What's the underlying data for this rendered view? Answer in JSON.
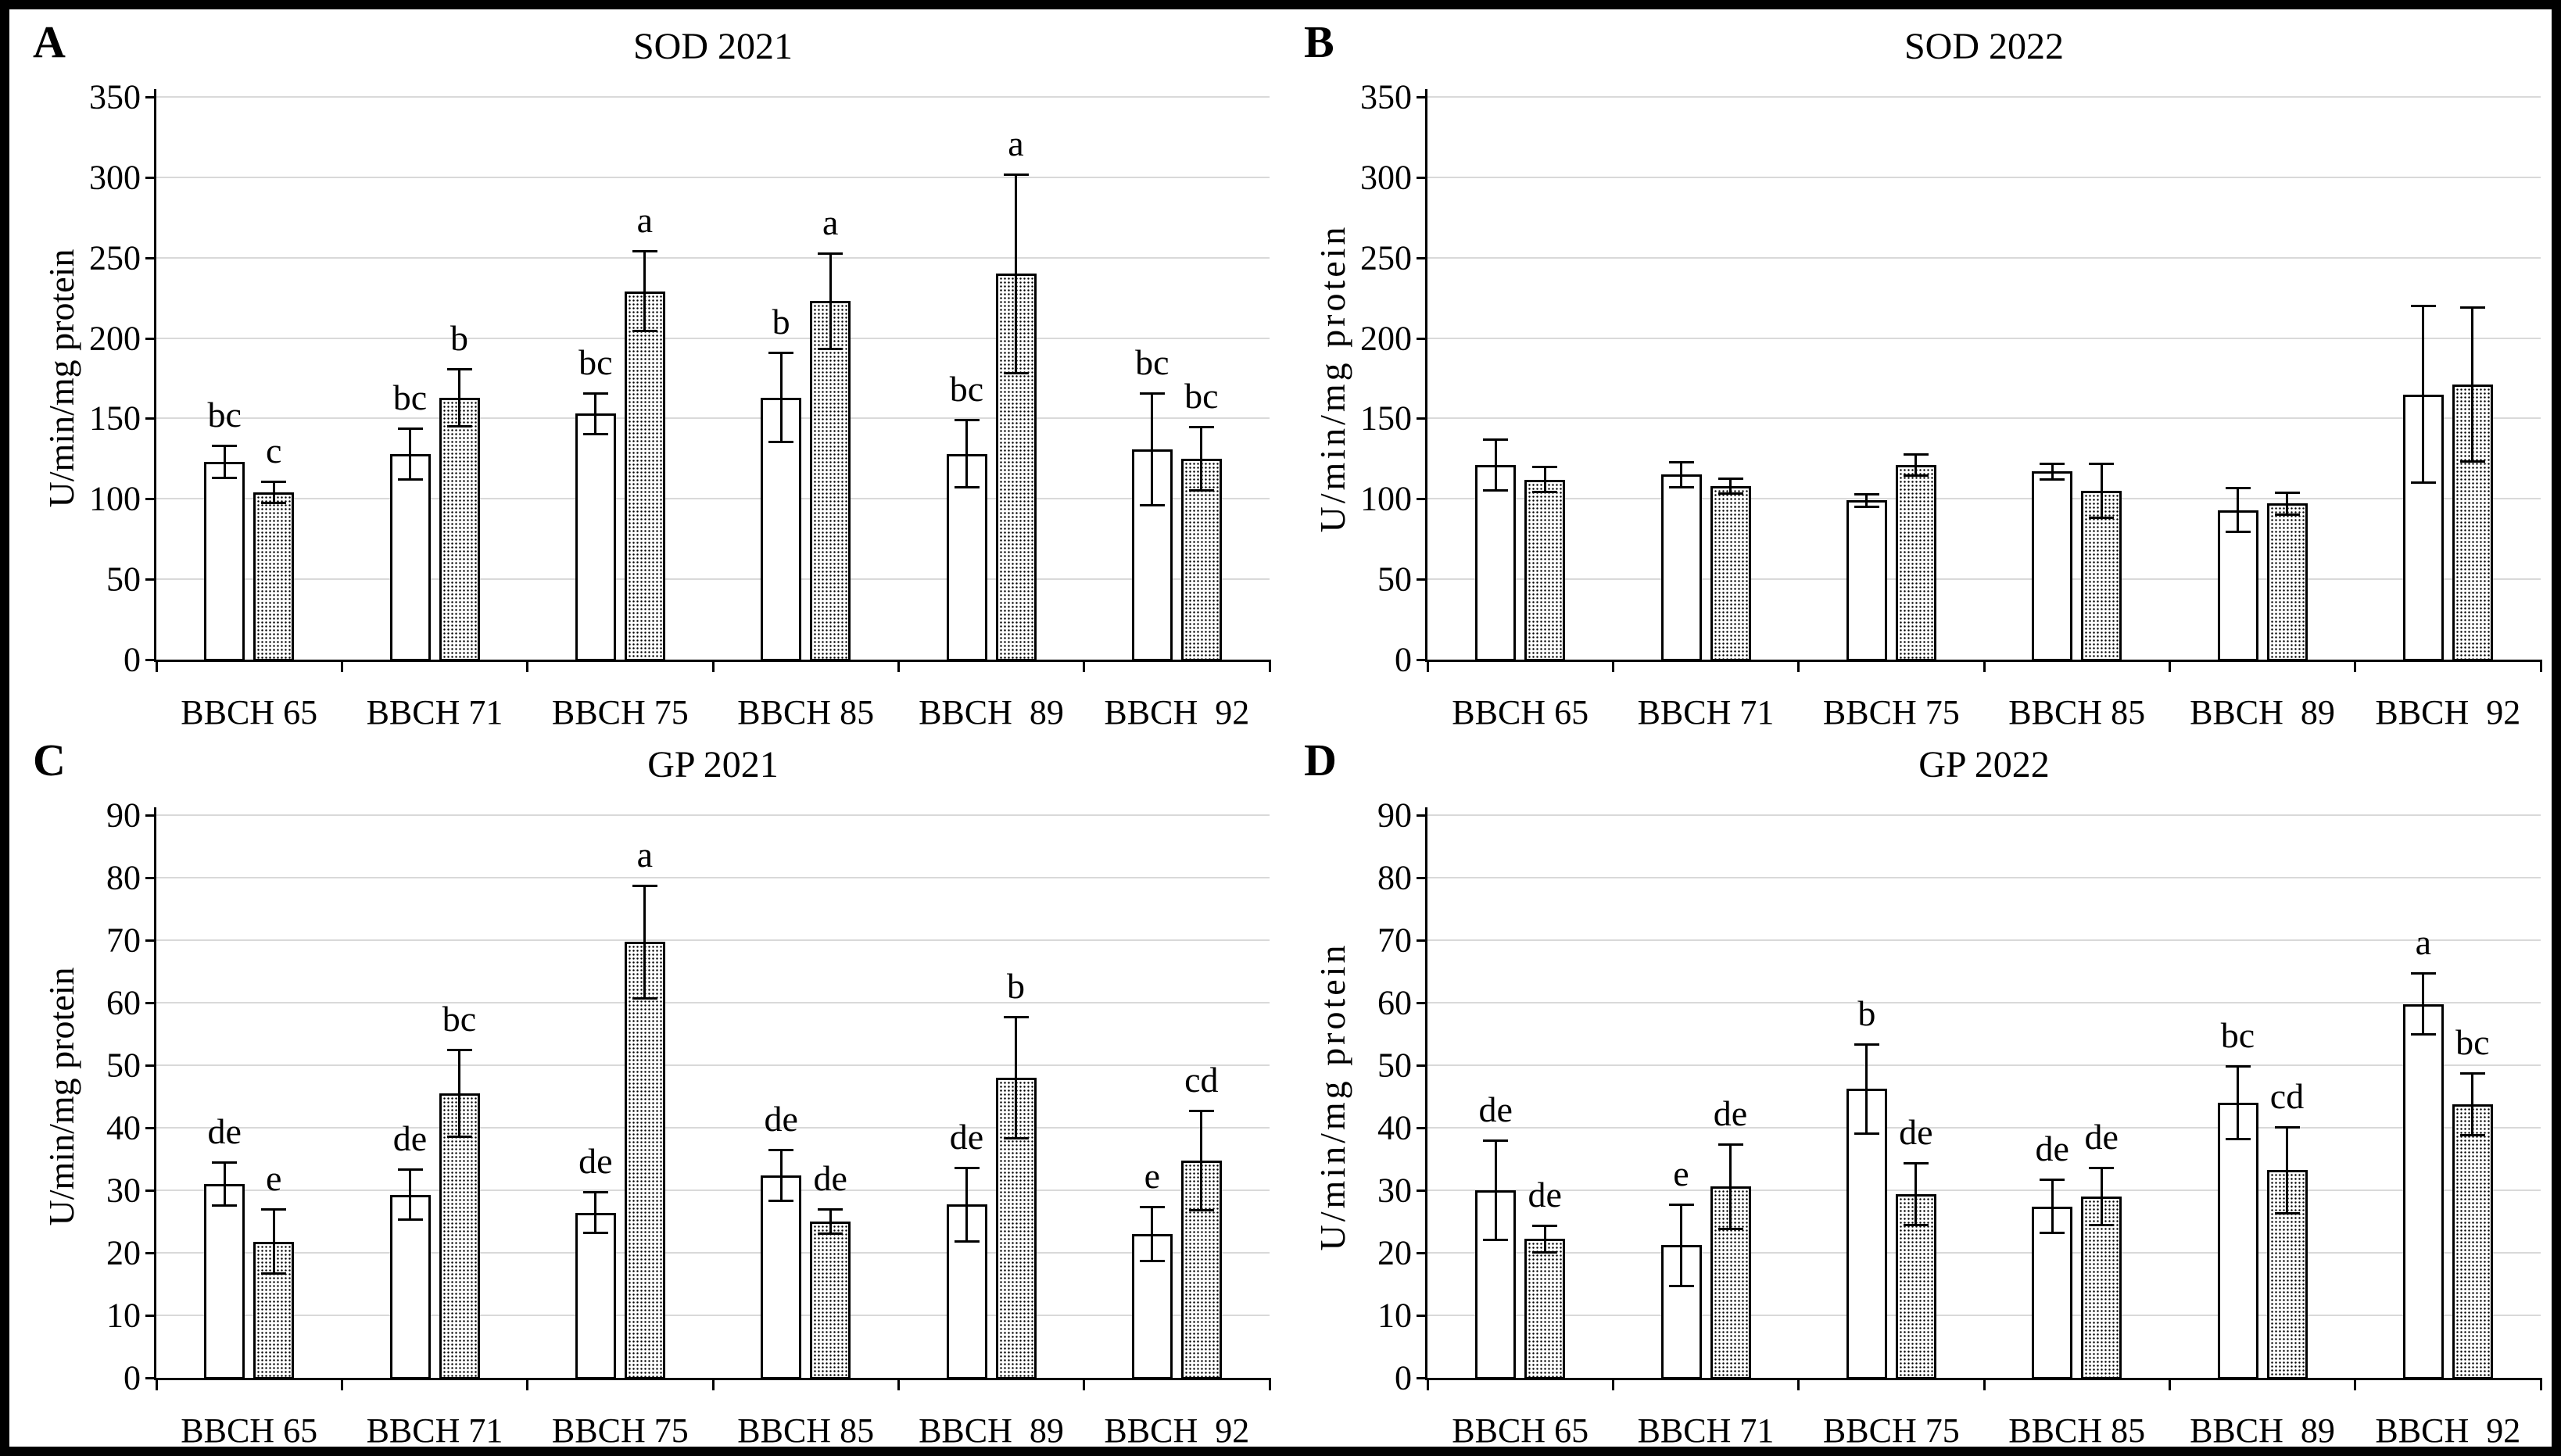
{
  "figure": {
    "border_color": "#000000",
    "background": "#ffffff",
    "gridline_color": "#d9d9d9"
  },
  "chart_data": [
    {
      "type": "bar",
      "panel": "A",
      "title": "SOD 2021",
      "ylabel": "U/min/mg protein",
      "xlabel": "",
      "ylim": [
        0,
        350
      ],
      "ystep": 50,
      "grid": "horizontal",
      "legend": "none",
      "y_tick_labels": [
        "0",
        "50",
        "100",
        "150",
        "200",
        "250",
        "300",
        "350"
      ],
      "categories": [
        "BBCH 65",
        "BBCH 71",
        "BBCH 75",
        "BBCH 85",
        "BBCH  89",
        "BBCH  92"
      ],
      "series": [
        {
          "name": "open-bars",
          "pattern": "open",
          "values": [
            123,
            128,
            153,
            163,
            128,
            131
          ],
          "errors": [
            10,
            16,
            13,
            28,
            21,
            35
          ],
          "letters": [
            "bc",
            "bc",
            "bc",
            "b",
            "bc",
            "bc"
          ]
        },
        {
          "name": "dotted-bars",
          "pattern": "dotted",
          "values": [
            104,
            163,
            229,
            223,
            240,
            125
          ],
          "errors": [
            7,
            18,
            25,
            30,
            62,
            20
          ],
          "letters": [
            "c",
            "b",
            "a",
            "a",
            "a",
            "bc"
          ]
        }
      ]
    },
    {
      "type": "bar",
      "panel": "B",
      "title": "SOD 2022",
      "ylabel": "U/min/mg protein",
      "xlabel": "",
      "ylim": [
        0,
        350
      ],
      "ystep": 50,
      "grid": "horizontal",
      "legend": "none",
      "y_tick_labels": [
        "0",
        "50",
        "100",
        "150",
        "200",
        "250",
        "300",
        "350"
      ],
      "categories": [
        "BBCH 65",
        "BBCH 71",
        "BBCH 75",
        "BBCH 85",
        "BBCH  89",
        "BBCH  92"
      ],
      "series": [
        {
          "name": "open-bars",
          "pattern": "open",
          "values": [
            121,
            115,
            99,
            117,
            93,
            165
          ],
          "errors": [
            16,
            8,
            4,
            5,
            14,
            55
          ],
          "letters": [
            "",
            "",
            "",
            "",
            "",
            ""
          ]
        },
        {
          "name": "dotted-bars",
          "pattern": "dotted",
          "values": [
            112,
            108,
            121,
            105,
            97,
            171
          ],
          "errors": [
            8,
            5,
            7,
            17,
            7,
            48
          ],
          "letters": [
            "",
            "",
            "",
            "",
            "",
            ""
          ]
        }
      ]
    },
    {
      "type": "bar",
      "panel": "C",
      "title": "GP 2021",
      "ylabel": "U/min/mg protein",
      "xlabel": "",
      "ylim": [
        0,
        90
      ],
      "ystep": 10,
      "grid": "horizontal",
      "legend": "none",
      "y_tick_labels": [
        "0",
        "10",
        "20",
        "30",
        "40",
        "50",
        "60",
        "70",
        "80",
        "90"
      ],
      "categories": [
        "BBCH 65",
        "BBCH 71",
        "BBCH 75",
        "BBCH 85",
        "BBCH  89",
        "BBCH  92"
      ],
      "series": [
        {
          "name": "open-bars",
          "pattern": "open",
          "values": [
            31,
            29.3,
            26.4,
            32.4,
            27.7,
            23
          ],
          "errors": [
            3.5,
            4.1,
            3.3,
            4.1,
            5.9,
            4.4
          ],
          "letters": [
            "de",
            "de",
            "de",
            "de",
            "de",
            "e"
          ]
        },
        {
          "name": "dotted-bars",
          "pattern": "dotted",
          "values": [
            21.8,
            45.5,
            69.7,
            25,
            48,
            34.7
          ],
          "errors": [
            5.2,
            7,
            9.1,
            2,
            9.7,
            8
          ],
          "letters": [
            "e",
            "bc",
            "a",
            "de",
            "b",
            "cd"
          ]
        }
      ]
    },
    {
      "type": "bar",
      "panel": "D",
      "title": "GP 2022",
      "ylabel": "U/min/mg protein",
      "xlabel": "",
      "ylim": [
        0,
        90
      ],
      "ystep": 10,
      "grid": "horizontal",
      "legend": "none",
      "y_tick_labels": [
        "0",
        "10",
        "20",
        "30",
        "40",
        "50",
        "60",
        "70",
        "80",
        "90"
      ],
      "categories": [
        "BBCH 65",
        "BBCH 71",
        "BBCH 75",
        "BBCH 85",
        "BBCH  89",
        "BBCH  92"
      ],
      "series": [
        {
          "name": "open-bars",
          "pattern": "open",
          "values": [
            30,
            21.2,
            46.2,
            27.4,
            44,
            59.8
          ],
          "errors": [
            8,
            6.6,
            7.2,
            4.3,
            5.9,
            4.9
          ],
          "letters": [
            "de",
            "e",
            "b",
            "de",
            "bc",
            "a"
          ]
        },
        {
          "name": "dotted-bars",
          "pattern": "dotted",
          "values": [
            22.2,
            30.6,
            29.4,
            29,
            33.2,
            43.7
          ],
          "errors": [
            2.2,
            6.8,
            5,
            4.6,
            6.9,
            5
          ],
          "letters": [
            "de",
            "de",
            "de",
            "de",
            "cd",
            "bc"
          ]
        }
      ]
    }
  ]
}
